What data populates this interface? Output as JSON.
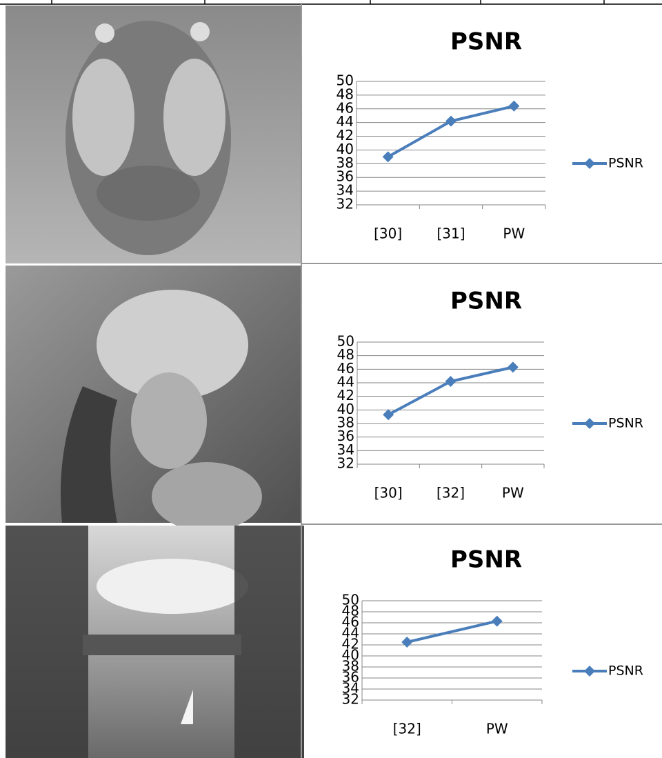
{
  "chart_data": [
    {
      "type": "line",
      "title": "PSNR",
      "categories": [
        "[30]",
        "[31]",
        "PW"
      ],
      "series": [
        {
          "name": "PSNR",
          "color": "#4a7ebb",
          "values": [
            39,
            44.2,
            46.4
          ]
        }
      ],
      "ylim": [
        32,
        50
      ],
      "yticks": [
        32,
        34,
        36,
        38,
        40,
        42,
        44,
        46,
        48,
        50
      ],
      "grid": true,
      "legend": "right"
    },
    {
      "type": "line",
      "title": "PSNR",
      "categories": [
        "[30]",
        "[32]",
        "PW"
      ],
      "series": [
        {
          "name": "PSNR",
          "color": "#4a7ebb",
          "values": [
            39.3,
            44.2,
            46.3
          ]
        }
      ],
      "ylim": [
        32,
        50
      ],
      "yticks": [
        32,
        34,
        36,
        38,
        40,
        42,
        44,
        46,
        48,
        50
      ],
      "grid": true,
      "legend": "right"
    },
    {
      "type": "line",
      "title": "PSNR",
      "categories": [
        "[32]",
        "PW"
      ],
      "series": [
        {
          "name": "PSNR",
          "color": "#4a7ebb",
          "values": [
            42.5,
            46.3
          ]
        }
      ],
      "ylim": [
        32,
        50
      ],
      "yticks": [
        32,
        34,
        36,
        38,
        40,
        42,
        44,
        46,
        48,
        50
      ],
      "grid": true,
      "legend": "right"
    }
  ]
}
